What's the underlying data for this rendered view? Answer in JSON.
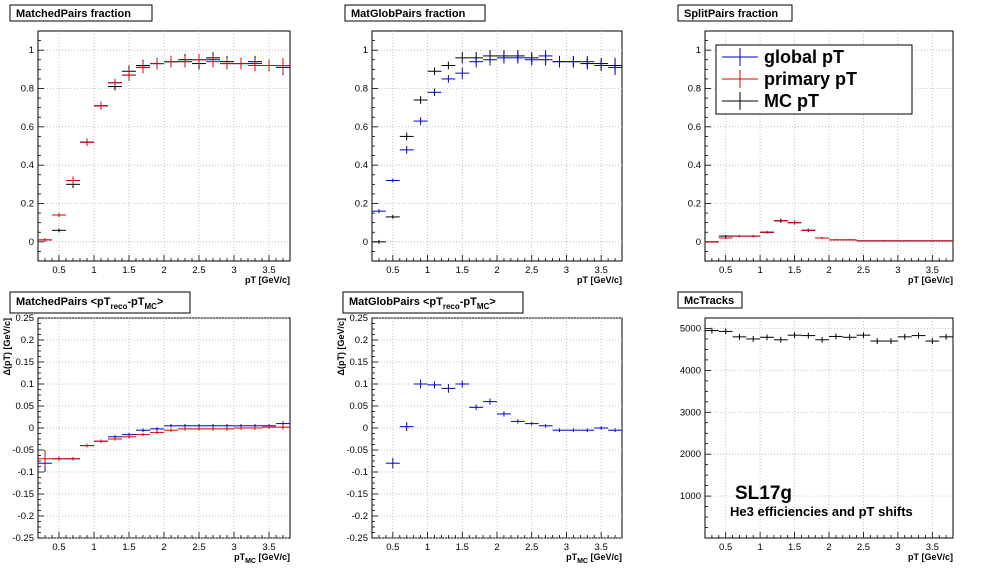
{
  "colors": {
    "global": "#0000cc",
    "primary": "#dd0000",
    "mc": "#000000",
    "grid": "#b4b4b4"
  },
  "legend": [
    {
      "label": "global pT",
      "color": "#0000cc"
    },
    {
      "label": "primary pT",
      "color": "#dd0000"
    },
    {
      "label": "MC pT",
      "color": "#000000"
    }
  ],
  "annotation": {
    "title": "SL17g",
    "subtitle": "He3 efficiencies and pT shifts"
  },
  "chart_data": [
    {
      "id": "p1",
      "type": "scatter",
      "title": "MatchedPairs fraction",
      "xlabel": "pT [GeV/c]",
      "ylabel": "",
      "xlim": [
        0.2,
        3.8
      ],
      "ylim": [
        -0.1,
        1.1
      ],
      "xticks": [
        0.5,
        1,
        1.5,
        2,
        2.5,
        3,
        3.5
      ],
      "xtick_labels": [
        "0.5",
        "1",
        "1.5",
        "2",
        "2.5",
        "3",
        "3.5"
      ],
      "yticks": [
        0,
        0.2,
        0.4,
        0.6,
        0.8,
        1
      ],
      "ytick_labels": [
        "0",
        "0.2",
        "0.4",
        "0.6",
        "0.8",
        "1"
      ],
      "grid": true,
      "bin_halfwidth": 0.1,
      "x": [
        0.3,
        0.5,
        0.7,
        0.9,
        1.1,
        1.3,
        1.5,
        1.7,
        1.9,
        2.1,
        2.3,
        2.5,
        2.7,
        2.9,
        3.1,
        3.3,
        3.5,
        3.7
      ],
      "series": [
        {
          "name": "MC pT",
          "color_key": "mc",
          "values": [
            0.01,
            0.06,
            0.3,
            0.52,
            0.71,
            0.81,
            0.89,
            0.92,
            0.93,
            0.94,
            0.95,
            0.93,
            0.96,
            0.94,
            0.93,
            0.94,
            0.92,
            0.91
          ],
          "err": [
            0.01,
            0.01,
            0.02,
            0.02,
            0.02,
            0.02,
            0.03,
            0.03,
            0.03,
            0.03,
            0.03,
            0.03,
            0.03,
            0.03,
            0.03,
            0.03,
            0.03,
            0.04
          ]
        },
        {
          "name": "global pT",
          "color_key": "global",
          "values": [
            0.01,
            0.14,
            0.32,
            0.52,
            0.71,
            0.83,
            0.87,
            0.91,
            0.93,
            0.94,
            0.94,
            0.95,
            0.95,
            0.93,
            0.93,
            0.93,
            0.92,
            0.91
          ],
          "err": [
            0.01,
            0.01,
            0.02,
            0.02,
            0.02,
            0.02,
            0.03,
            0.03,
            0.03,
            0.03,
            0.03,
            0.03,
            0.03,
            0.03,
            0.03,
            0.03,
            0.03,
            0.04
          ]
        },
        {
          "name": "primary pT",
          "color_key": "primary",
          "values": [
            0.01,
            0.14,
            0.32,
            0.52,
            0.71,
            0.83,
            0.87,
            0.91,
            0.93,
            0.94,
            0.94,
            0.95,
            0.94,
            0.93,
            0.93,
            0.92,
            0.92,
            0.92
          ],
          "err": [
            0.01,
            0.01,
            0.02,
            0.02,
            0.02,
            0.02,
            0.03,
            0.03,
            0.03,
            0.03,
            0.03,
            0.03,
            0.03,
            0.03,
            0.03,
            0.03,
            0.03,
            0.04
          ]
        }
      ]
    },
    {
      "id": "p2",
      "type": "scatter",
      "title": "MatGlobPairs fraction",
      "xlabel": "pT [GeV/c]",
      "ylabel": "",
      "xlim": [
        0.2,
        3.8
      ],
      "ylim": [
        -0.1,
        1.1
      ],
      "xticks": [
        0.5,
        1,
        1.5,
        2,
        2.5,
        3,
        3.5
      ],
      "xtick_labels": [
        "0.5",
        "1",
        "1.5",
        "2",
        "2.5",
        "3",
        "3.5"
      ],
      "yticks": [
        0,
        0.2,
        0.4,
        0.6,
        0.8,
        1
      ],
      "ytick_labels": [
        "0",
        "0.2",
        "0.4",
        "0.6",
        "0.8",
        "1"
      ],
      "grid": true,
      "bin_halfwidth": 0.1,
      "x": [
        0.3,
        0.5,
        0.7,
        0.9,
        1.1,
        1.3,
        1.5,
        1.7,
        1.9,
        2.1,
        2.3,
        2.5,
        2.7,
        2.9,
        3.1,
        3.3,
        3.5,
        3.7
      ],
      "series": [
        {
          "name": "MC pT",
          "color_key": "mc",
          "values": [
            0.0,
            0.13,
            0.55,
            0.74,
            0.89,
            0.92,
            0.96,
            0.96,
            0.97,
            0.97,
            0.97,
            0.96,
            0.95,
            0.94,
            0.94,
            0.93,
            0.93,
            0.92
          ],
          "err": [
            0.01,
            0.01,
            0.02,
            0.02,
            0.02,
            0.02,
            0.03,
            0.03,
            0.03,
            0.03,
            0.03,
            0.03,
            0.03,
            0.03,
            0.03,
            0.03,
            0.03,
            0.04
          ]
        },
        {
          "name": "global pT",
          "color_key": "global",
          "values": [
            0.16,
            0.32,
            0.48,
            0.63,
            0.78,
            0.85,
            0.88,
            0.94,
            0.95,
            0.96,
            0.96,
            0.95,
            0.97,
            0.94,
            0.94,
            0.94,
            0.92,
            0.91
          ],
          "err": [
            0.01,
            0.01,
            0.02,
            0.02,
            0.02,
            0.02,
            0.03,
            0.03,
            0.03,
            0.03,
            0.03,
            0.03,
            0.03,
            0.03,
            0.03,
            0.03,
            0.03,
            0.04
          ]
        }
      ]
    },
    {
      "id": "p3",
      "type": "scatter",
      "title": "SplitPairs fraction",
      "xlabel": "pT [GeV/c]",
      "ylabel": "",
      "xlim": [
        0.2,
        3.8
      ],
      "ylim": [
        -0.1,
        1.1
      ],
      "xticks": [
        0.5,
        1,
        1.5,
        2,
        2.5,
        3,
        3.5
      ],
      "xtick_labels": [
        "0.5",
        "1",
        "1.5",
        "2",
        "2.5",
        "3",
        "3.5"
      ],
      "yticks": [
        0,
        0.2,
        0.4,
        0.6,
        0.8,
        1
      ],
      "ytick_labels": [
        "0",
        "0.2",
        "0.4",
        "0.6",
        "0.8",
        "1"
      ],
      "grid": true,
      "bin_halfwidth": 0.1,
      "legend_position": "top-left",
      "x": [
        0.3,
        0.5,
        0.7,
        0.9,
        1.1,
        1.3,
        1.5,
        1.7,
        1.9,
        2.1,
        2.3,
        2.5,
        2.7,
        2.9,
        3.1,
        3.3,
        3.5,
        3.7
      ],
      "series": [
        {
          "name": "MC pT",
          "color_key": "mc",
          "values": [
            0.0,
            0.03,
            0.03,
            0.03,
            0.05,
            0.11,
            0.1,
            0.06,
            0.02,
            0.01,
            0.01,
            0.005,
            0.005,
            0.005,
            0.005,
            0.005,
            0.005,
            0.005
          ],
          "err": [
            0.0,
            0.005,
            0.005,
            0.005,
            0.007,
            0.01,
            0.01,
            0.008,
            0.005,
            0.003,
            0.003,
            0.002,
            0.002,
            0.002,
            0.002,
            0.002,
            0.002,
            0.002
          ]
        },
        {
          "name": "global pT",
          "color_key": "global",
          "values": [
            0.0,
            0.02,
            0.03,
            0.03,
            0.05,
            0.11,
            0.1,
            0.06,
            0.02,
            0.01,
            0.01,
            0.005,
            0.005,
            0.005,
            0.005,
            0.005,
            0.005,
            0.005
          ],
          "err": [
            0.0,
            0.005,
            0.005,
            0.005,
            0.007,
            0.01,
            0.01,
            0.008,
            0.005,
            0.003,
            0.003,
            0.002,
            0.002,
            0.002,
            0.002,
            0.002,
            0.002,
            0.002
          ]
        },
        {
          "name": "primary pT",
          "color_key": "primary",
          "values": [
            0.0,
            0.02,
            0.03,
            0.03,
            0.05,
            0.11,
            0.1,
            0.06,
            0.02,
            0.01,
            0.01,
            0.005,
            0.005,
            0.005,
            0.005,
            0.005,
            0.005,
            0.005
          ],
          "err": [
            0.0,
            0.005,
            0.005,
            0.005,
            0.007,
            0.01,
            0.01,
            0.008,
            0.005,
            0.003,
            0.003,
            0.002,
            0.002,
            0.002,
            0.002,
            0.002,
            0.002,
            0.002
          ]
        }
      ]
    },
    {
      "id": "p4",
      "type": "scatter",
      "title": "MatchedPairs <pT_reco-pT_MC>",
      "title_parts": [
        "MatchedPairs <pT",
        "reco",
        "-pT",
        "MC",
        ">"
      ],
      "xlabel": "pT_MC [GeV/c]",
      "xlabel_parts": [
        "pT",
        "MC",
        " [GeV/c]"
      ],
      "ylabel": "Δ(pT) [GeV/c]",
      "xlim": [
        0.2,
        3.8
      ],
      "ylim": [
        -0.25,
        0.25
      ],
      "xticks": [
        0.5,
        1,
        1.5,
        2,
        2.5,
        3,
        3.5
      ],
      "xtick_labels": [
        "0.5",
        "1",
        "1.5",
        "2",
        "2.5",
        "3",
        "3.5"
      ],
      "yticks": [
        -0.25,
        -0.2,
        -0.15,
        -0.1,
        -0.05,
        0,
        0.05,
        0.1,
        0.15,
        0.2,
        0.25
      ],
      "ytick_labels": [
        "-0.25",
        "-0.2",
        "-0.15",
        "-0.1",
        "-0.05",
        "0",
        "0.05",
        "0.1",
        "0.15",
        "0.2",
        "0.25"
      ],
      "grid": true,
      "bin_halfwidth": 0.1,
      "x": [
        0.3,
        0.5,
        0.7,
        0.9,
        1.1,
        1.3,
        1.5,
        1.7,
        1.9,
        2.1,
        2.3,
        2.5,
        2.7,
        2.9,
        3.1,
        3.3,
        3.5,
        3.7
      ],
      "series": [
        {
          "name": "global pT",
          "color_key": "global",
          "values": [
            -0.08,
            -0.07,
            -0.07,
            -0.04,
            -0.03,
            -0.02,
            -0.015,
            -0.005,
            -0.002,
            0.005,
            0.005,
            0.005,
            0.005,
            0.005,
            0.005,
            0.005,
            0.005,
            0.01
          ],
          "err": [
            0.02,
            0.005,
            0.004,
            0.004,
            0.004,
            0.004,
            0.004,
            0.004,
            0.004,
            0.004,
            0.004,
            0.004,
            0.004,
            0.004,
            0.004,
            0.004,
            0.004,
            0.005
          ]
        },
        {
          "name": "primary pT",
          "color_key": "primary",
          "values": [
            -0.07,
            -0.07,
            -0.07,
            -0.04,
            -0.03,
            -0.025,
            -0.02,
            -0.015,
            -0.01,
            -0.005,
            -0.002,
            -0.002,
            -0.002,
            -0.002,
            0.0,
            0.0,
            0.002,
            0.002
          ],
          "err": [
            0.02,
            0.005,
            0.004,
            0.004,
            0.004,
            0.004,
            0.004,
            0.004,
            0.004,
            0.004,
            0.004,
            0.004,
            0.004,
            0.004,
            0.004,
            0.004,
            0.004,
            0.005
          ]
        }
      ]
    },
    {
      "id": "p5",
      "type": "scatter",
      "title": "MatGlobPairs <pT_reco-pT_MC>",
      "title_parts": [
        "MatGlobPairs <pT",
        "reco",
        "-pT",
        "MC",
        ">"
      ],
      "xlabel": "pT_MC [GeV/c]",
      "xlabel_parts": [
        "pT",
        "MC",
        " [GeV/c]"
      ],
      "ylabel": "Δ(pT) [GeV/c]",
      "xlim": [
        0.2,
        3.8
      ],
      "ylim": [
        -0.25,
        0.25
      ],
      "xticks": [
        0.5,
        1,
        1.5,
        2,
        2.5,
        3,
        3.5
      ],
      "xtick_labels": [
        "0.5",
        "1",
        "1.5",
        "2",
        "2.5",
        "3",
        "3.5"
      ],
      "yticks": [
        -0.25,
        -0.2,
        -0.15,
        -0.1,
        -0.05,
        0,
        0.05,
        0.1,
        0.15,
        0.2,
        0.25
      ],
      "ytick_labels": [
        "-0.25",
        "-0.2",
        "-0.15",
        "-0.1",
        "-0.05",
        "0",
        "0.05",
        "0.1",
        "0.15",
        "0.2",
        "0.25"
      ],
      "grid": true,
      "bin_halfwidth": 0.1,
      "x": [
        0.5,
        0.7,
        0.9,
        1.1,
        1.3,
        1.5,
        1.7,
        1.9,
        2.1,
        2.3,
        2.5,
        2.7,
        2.9,
        3.1,
        3.3,
        3.5,
        3.7
      ],
      "series": [
        {
          "name": "global pT",
          "color_key": "global",
          "values": [
            -0.08,
            0.003,
            0.1,
            0.098,
            0.09,
            0.1,
            0.047,
            0.06,
            0.032,
            0.015,
            0.01,
            0.005,
            -0.005,
            -0.005,
            -0.005,
            0.0,
            -0.005
          ],
          "err": [
            0.012,
            0.01,
            0.01,
            0.008,
            0.01,
            0.008,
            0.006,
            0.007,
            0.006,
            0.005,
            0.004,
            0.004,
            0.004,
            0.004,
            0.004,
            0.004,
            0.004
          ]
        }
      ]
    },
    {
      "id": "p6",
      "type": "scatter",
      "title": "McTracks",
      "xlabel": "pT [GeV/c]",
      "ylabel": "",
      "xlim": [
        0.2,
        3.8
      ],
      "ylim": [
        0,
        5250
      ],
      "xticks": [
        0.5,
        1,
        1.5,
        2,
        2.5,
        3,
        3.5
      ],
      "xtick_labels": [
        "0.5",
        "1",
        "1.5",
        "2",
        "2.5",
        "3",
        "3.5"
      ],
      "yticks": [
        1000,
        2000,
        3000,
        4000,
        5000
      ],
      "ytick_labels": [
        "1000",
        "2000",
        "3000",
        "4000",
        "5000"
      ],
      "grid": true,
      "bin_halfwidth": 0.1,
      "x": [
        0.3,
        0.5,
        0.7,
        0.9,
        1.1,
        1.3,
        1.5,
        1.7,
        1.9,
        2.1,
        2.3,
        2.5,
        2.7,
        2.9,
        3.1,
        3.3,
        3.5,
        3.7
      ],
      "series": [
        {
          "name": "MC pT",
          "color_key": "mc",
          "values": [
            4950,
            4930,
            4800,
            4750,
            4790,
            4730,
            4840,
            4830,
            4730,
            4810,
            4790,
            4840,
            4700,
            4700,
            4800,
            4830,
            4700,
            4800
          ],
          "err": [
            70,
            70,
            70,
            70,
            70,
            70,
            70,
            70,
            70,
            70,
            70,
            70,
            70,
            70,
            70,
            70,
            70,
            70
          ]
        }
      ]
    }
  ]
}
